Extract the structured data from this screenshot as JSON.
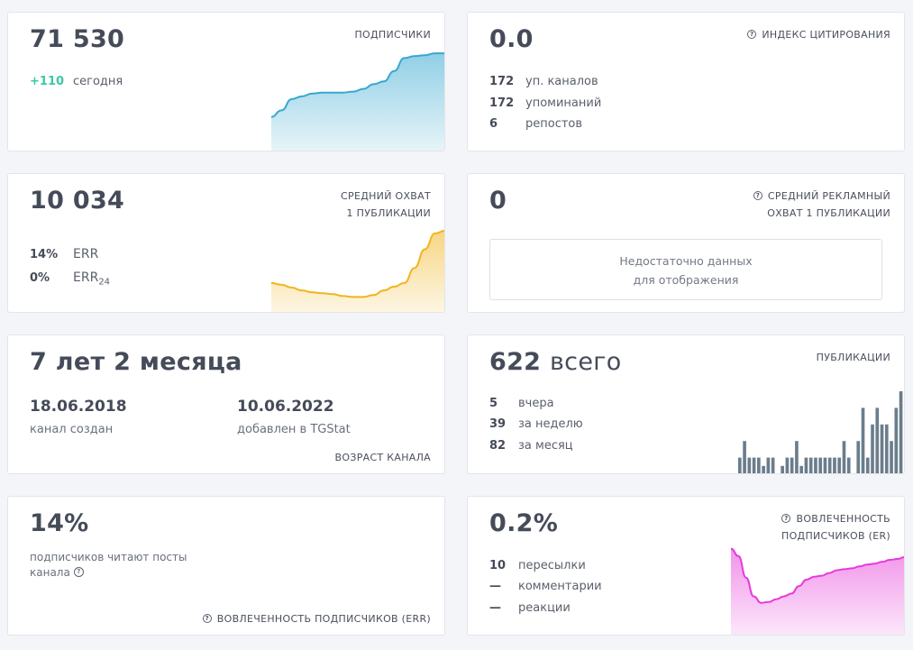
{
  "subscribers": {
    "value": "71 530",
    "title": "ПОДПИСЧИКИ",
    "delta": "+110",
    "delta_label": "сегодня",
    "sparkline": [
      37,
      44,
      56,
      59,
      62,
      63,
      63,
      63,
      64,
      67,
      72,
      75,
      86,
      100,
      102,
      103,
      105,
      105
    ],
    "color": "#37a8d0"
  },
  "citation": {
    "value": "0.0",
    "title": "ИНДЕКС ЦИТИРОВАНИЯ",
    "rows": [
      {
        "num": "172",
        "label": "уп. каналов"
      },
      {
        "num": "172",
        "label": "упоминаний"
      },
      {
        "num": "6",
        "label": "репостов"
      }
    ]
  },
  "reach": {
    "value": "10 034",
    "title_line1": "СРЕДНИЙ ОХВАТ",
    "title_line2": "1 ПУБЛИКАЦИИ",
    "err": {
      "num": "14%",
      "label": "ERR"
    },
    "err24": {
      "num": "0%",
      "label": "ERR",
      "sub": "24"
    },
    "sparkline": [
      32,
      30,
      27,
      24,
      22,
      21,
      20,
      18,
      17,
      17,
      19,
      24,
      28,
      32,
      48,
      68,
      85,
      88
    ],
    "color": "#f0b51e"
  },
  "ad_reach": {
    "value": "0",
    "title_line1": "СРЕДНИЙ РЕКЛАМНЫЙ",
    "title_line2": "ОХВАТ 1 ПУБЛИКАЦИИ",
    "nodata_line1": "Недостаточно данных",
    "nodata_line2": "для отображения"
  },
  "age": {
    "value": "7 лет 2 месяца",
    "created_date": "18.06.2018",
    "created_label": "канал создан",
    "added_date": "10.06.2022",
    "added_label": "добавлен в TGStat",
    "title": "ВОЗРАСТ КАНАЛА"
  },
  "posts": {
    "value_num": "622",
    "value_unit": "всего",
    "title": "ПУБЛИКАЦИИ",
    "rows": [
      {
        "num": "5",
        "label": "вчера"
      },
      {
        "num": "39",
        "label": "за неделю"
      },
      {
        "num": "82",
        "label": "за месяц"
      }
    ],
    "bars": [
      1,
      2,
      1,
      1,
      1,
      0.5,
      1,
      1,
      0,
      0.5,
      1,
      1,
      2,
      0.5,
      1,
      1,
      1,
      1,
      1,
      1,
      1,
      1,
      2,
      1,
      0,
      2,
      4,
      1,
      3,
      4,
      3,
      3,
      2,
      4,
      5
    ],
    "color": "#6b7d8c"
  },
  "err_card": {
    "value": "14%",
    "desc_line1": "подписчиков читают посты",
    "desc_line2": "канала",
    "title": "ВОВЛЕЧЕННОСТЬ ПОДПИСЧИКОВ (ERR)"
  },
  "er_card": {
    "value": "0.2%",
    "title_line1": "ВОВЛЕЧЕННОСТЬ",
    "title_line2": "ПОДПИСЧИКОВ (ER)",
    "rows": [
      {
        "num": "10",
        "label": "пересылки"
      },
      {
        "num": "—",
        "label": "комментарии"
      },
      {
        "num": "—",
        "label": "реакции"
      }
    ],
    "sparkline": [
      93,
      85,
      62,
      42,
      35,
      36,
      39,
      42,
      45,
      53,
      60,
      63,
      64,
      67,
      70,
      71,
      72,
      74,
      76,
      77,
      79,
      81,
      82,
      84
    ],
    "color": "#e63ad8"
  }
}
